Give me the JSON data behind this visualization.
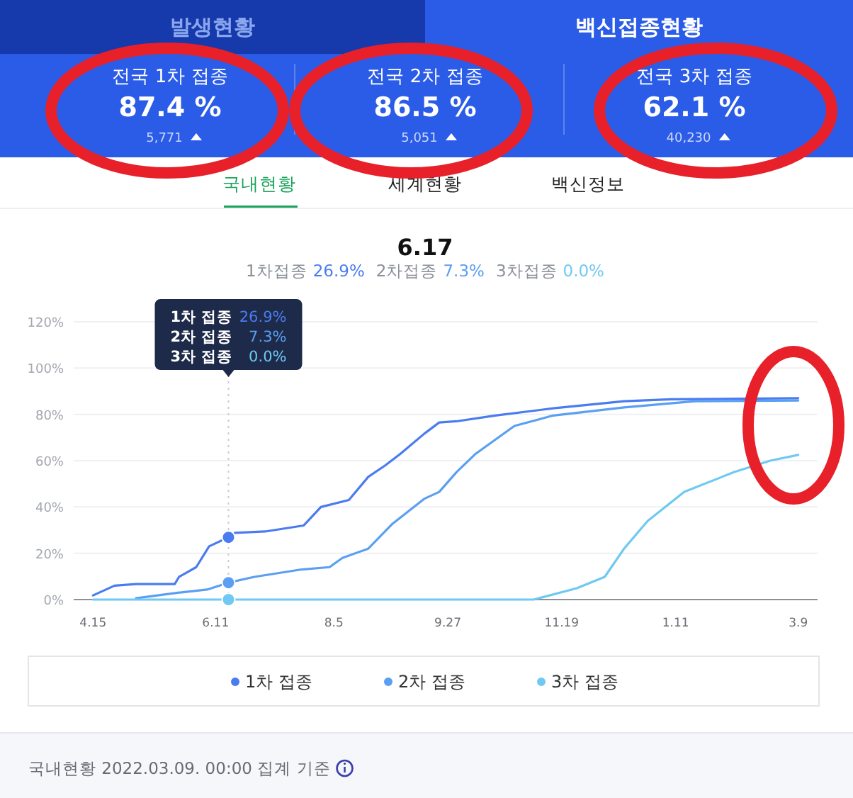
{
  "chart_data": {
    "type": "line",
    "title": "6.17",
    "annotations": [
      "발생현황",
      "백신접종현황",
      "전국 1차 접종",
      "87.4 %",
      "5,771",
      "전국 2차 접종",
      "86.5 %",
      "5,051",
      "전국 3차 접종",
      "62.1 %",
      "40,230",
      "국내현황",
      "세계현황",
      "백신정보",
      "1차접종",
      "26.9%",
      "2차접종",
      "7.3%",
      "3차접종",
      "0.0%",
      "국내현황 2022.03.09. 00:00 집계 기준",
      "26.9%",
      "7.3%",
      "0.0%"
    ],
    "series": [
      {
        "name": "1차 접종",
        "color": "#4a7cf0",
        "x": [
          "2021-04-15",
          "2021-04-25",
          "2021-05-05",
          "2021-05-23",
          "2021-05-25",
          "2021-06-02",
          "2021-06-08",
          "2021-06-17",
          "2021-06-20",
          "2021-07-04",
          "2021-07-22",
          "2021-07-30",
          "2021-08-12",
          "2021-08-21",
          "2021-08-29",
          "2021-09-05",
          "2021-09-16",
          "2021-09-23",
          "2021-10-01",
          "2021-10-19",
          "2021-11-15",
          "2021-12-18",
          "2022-01-09",
          "2022-03-09"
        ],
        "values": [
          1.8,
          6,
          6.7,
          6.7,
          9.8,
          14,
          23,
          26.9,
          28.8,
          29.4,
          32,
          40,
          43,
          53,
          58,
          63,
          71.6,
          76.5,
          77,
          79.5,
          82.6,
          85.7,
          86.5,
          87
        ]
      },
      {
        "name": "2차 접종",
        "color": "#5b9ff2",
        "x": [
          "2021-05-05",
          "2021-05-25",
          "2021-06-07",
          "2021-06-17",
          "2021-06-29",
          "2021-07-21",
          "2021-08-03",
          "2021-08-09",
          "2021-08-21",
          "2021-09-01",
          "2021-09-16",
          "2021-09-23",
          "2021-10-01",
          "2021-10-10",
          "2021-10-28",
          "2021-11-15",
          "2021-12-18",
          "2022-01-20",
          "2022-03-09"
        ],
        "values": [
          0.6,
          3,
          4.3,
          7.3,
          9.8,
          13,
          14,
          18,
          22,
          32.5,
          43.5,
          46.5,
          55,
          63,
          75,
          79.5,
          83,
          85.7,
          86
        ]
      },
      {
        "name": "3차 접종",
        "color": "#6fc9f2",
        "x": [
          "2021-04-15",
          "2021-06-17",
          "2021-11-06",
          "2021-11-26",
          "2021-12-09",
          "2021-12-18",
          "2021-12-29",
          "2022-01-15",
          "2022-02-07",
          "2022-02-24",
          "2022-03-09"
        ],
        "values": [
          0,
          0,
          0,
          4.9,
          9.8,
          22,
          34,
          46.5,
          55,
          60,
          62.5
        ]
      }
    ],
    "xlim": [
      "2021-04-06",
      "2022-03-18"
    ],
    "xticks": [
      {
        "value": "2021-04-15",
        "label": "4.15"
      },
      {
        "value": "2021-06-11",
        "label": "6.11"
      },
      {
        "value": "2021-08-05",
        "label": "8.5"
      },
      {
        "value": "2021-09-27",
        "label": "9.27"
      },
      {
        "value": "2021-11-19",
        "label": "11.19"
      },
      {
        "value": "2022-01-11",
        "label": "1.11"
      },
      {
        "value": "2022-03-09",
        "label": "3.9"
      }
    ],
    "ylim": [
      0,
      120
    ],
    "yticks": [
      {
        "value": 0,
        "label": "0%"
      },
      {
        "value": 20,
        "label": "20%"
      },
      {
        "value": 40,
        "label": "40%"
      },
      {
        "value": 60,
        "label": "60%"
      },
      {
        "value": 80,
        "label": "80%"
      },
      {
        "value": 100,
        "label": "100%"
      },
      {
        "value": 120,
        "label": "120%"
      }
    ],
    "ref_lines": [
      {
        "axis": "x",
        "value": "2021-06-17",
        "line_style": "dotted",
        "color": "#c8ccd4"
      }
    ],
    "grid": "y",
    "legend": "bottom",
    "marker": "none",
    "line_style": "solid"
  }
}
